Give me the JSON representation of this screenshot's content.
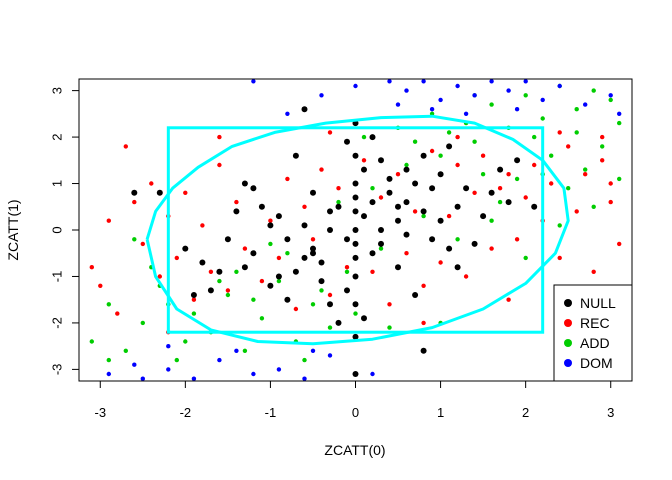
{
  "chart_data": {
    "type": "scatter",
    "title": "",
    "xlabel": "ZCATT(0)",
    "ylabel": "ZCATT(1)",
    "xlim": [
      -3.25,
      3.25
    ],
    "ylim": [
      -3.25,
      3.25
    ],
    "x_ticks": [
      -3,
      -2,
      -1,
      0,
      1,
      2,
      3
    ],
    "y_ticks": [
      -3,
      -2,
      -1,
      0,
      1,
      2,
      3
    ],
    "x_tick_labels": [
      "-3",
      "-2",
      "-1",
      "0",
      "1",
      "2",
      "3"
    ],
    "y_tick_labels": [
      "-3",
      "-2",
      "-1",
      "0",
      "1",
      "2",
      "3"
    ],
    "grid": false,
    "legend": {
      "position": "bottom-right",
      "entries": [
        {
          "label": "NULL",
          "color": "#000000"
        },
        {
          "label": "REC",
          "color": "#ff0000"
        },
        {
          "label": "ADD",
          "color": "#00cd00"
        },
        {
          "label": "DOM",
          "color": "#0000ff"
        }
      ]
    },
    "series": [
      {
        "name": "NULL",
        "color": "#000000",
        "points": [
          [
            0.0,
            0.0
          ],
          [
            0.1,
            0.3
          ],
          [
            -0.1,
            -0.2
          ],
          [
            0.2,
            0.6
          ],
          [
            -0.3,
            0.4
          ],
          [
            0.3,
            -0.3
          ],
          [
            0.5,
            0.2
          ],
          [
            -0.5,
            -0.4
          ],
          [
            0.0,
            1.0
          ],
          [
            0.0,
            -1.0
          ],
          [
            0.1,
            1.3
          ],
          [
            -0.1,
            -1.3
          ],
          [
            0.0,
            0.7
          ],
          [
            0.0,
            -0.6
          ],
          [
            0.0,
            1.6
          ],
          [
            0.0,
            -1.6
          ],
          [
            0.6,
            0.6
          ],
          [
            -0.6,
            -0.6
          ],
          [
            0.8,
            0.4
          ],
          [
            -0.8,
            -0.2
          ],
          [
            1.0,
            0.2
          ],
          [
            -1.0,
            0.1
          ],
          [
            1.2,
            0.5
          ],
          [
            -1.2,
            -0.5
          ],
          [
            0.4,
            1.1
          ],
          [
            -0.4,
            -1.1
          ],
          [
            0.7,
            1.0
          ],
          [
            -0.7,
            -0.9
          ],
          [
            0.9,
            -0.2
          ],
          [
            -0.9,
            0.3
          ],
          [
            1.1,
            -0.4
          ],
          [
            -1.1,
            0.5
          ],
          [
            0.3,
            1.5
          ],
          [
            -0.3,
            -1.6
          ],
          [
            0.5,
            -0.8
          ],
          [
            -0.5,
            0.8
          ],
          [
            1.3,
            0.9
          ],
          [
            -1.3,
            -0.8
          ],
          [
            1.5,
            0.3
          ],
          [
            -1.5,
            -0.2
          ],
          [
            0.2,
            2.0
          ],
          [
            -0.2,
            -2.0
          ],
          [
            1.6,
            0.8
          ],
          [
            -1.6,
            -0.9
          ],
          [
            0.8,
            1.6
          ],
          [
            -0.8,
            -1.5
          ],
          [
            1.4,
            -0.3
          ],
          [
            -1.4,
            0.4
          ],
          [
            0.6,
            -0.1
          ],
          [
            -0.6,
            0.1
          ],
          [
            0.2,
            -0.5
          ],
          [
            -0.2,
            0.5
          ],
          [
            1.8,
            0.6
          ],
          [
            -1.8,
            -0.7
          ],
          [
            0.4,
            0.8
          ],
          [
            -0.4,
            -0.7
          ],
          [
            1.0,
            1.2
          ],
          [
            -1.0,
            -1.2
          ],
          [
            0.1,
            -1.9
          ],
          [
            -0.1,
            1.9
          ],
          [
            2.1,
            0.5
          ],
          [
            -2.0,
            -0.4
          ],
          [
            0.9,
            0.9
          ],
          [
            -0.9,
            -1.0
          ],
          [
            1.7,
            1.3
          ],
          [
            -1.7,
            -1.3
          ],
          [
            0.3,
            0.0
          ],
          [
            -0.3,
            0.0
          ],
          [
            0.0,
            2.3
          ],
          [
            0.0,
            -2.3
          ],
          [
            1.2,
            -0.8
          ],
          [
            -1.2,
            0.9
          ],
          [
            -0.7,
            1.6
          ],
          [
            0.7,
            -1.4
          ],
          [
            1.9,
            1.5
          ],
          [
            -1.9,
            -1.4
          ],
          [
            0.5,
            0.5
          ],
          [
            -0.5,
            -0.5
          ],
          [
            0.0,
            0.4
          ],
          [
            0.0,
            -0.3
          ],
          [
            0.6,
            1.3
          ],
          [
            0.8,
            -2.6
          ],
          [
            0.0,
            -3.1
          ],
          [
            -0.6,
            2.6
          ],
          [
            -1.3,
            1.0
          ],
          [
            1.1,
            1.8
          ],
          [
            -2.3,
            0.8
          ],
          [
            -2.6,
            0.8
          ]
        ]
      },
      {
        "name": "REC",
        "color": "#ff0000",
        "points": [
          [
            -3.1,
            -0.8
          ],
          [
            -3.0,
            -1.2
          ],
          [
            -2.9,
            0.2
          ],
          [
            -2.8,
            -1.8
          ],
          [
            -2.6,
            0.6
          ],
          [
            -2.5,
            -0.3
          ],
          [
            -2.4,
            1.0
          ],
          [
            -2.3,
            -1.0
          ],
          [
            -2.2,
            0.3
          ],
          [
            -2.1,
            -0.6
          ],
          [
            -2.0,
            0.8
          ],
          [
            -1.9,
            -1.5
          ],
          [
            -1.8,
            0.1
          ],
          [
            -1.7,
            -0.9
          ],
          [
            -1.6,
            1.4
          ],
          [
            -1.5,
            -1.3
          ],
          [
            -1.4,
            0.6
          ],
          [
            -1.3,
            -0.4
          ],
          [
            -1.2,
            0.9
          ],
          [
            -1.1,
            -1.1
          ],
          [
            -1.0,
            0.2
          ],
          [
            -0.9,
            -0.6
          ],
          [
            -0.8,
            1.1
          ],
          [
            -0.7,
            -1.7
          ],
          [
            -0.6,
            0.5
          ],
          [
            -0.5,
            -0.2
          ],
          [
            -0.4,
            1.3
          ],
          [
            -0.3,
            -1.4
          ],
          [
            -0.2,
            0.9
          ],
          [
            -0.1,
            -0.8
          ],
          [
            0.1,
            1.5
          ],
          [
            0.2,
            -0.9
          ],
          [
            0.3,
            0.7
          ],
          [
            0.4,
            -1.6
          ],
          [
            0.5,
            1.2
          ],
          [
            0.6,
            -0.5
          ],
          [
            0.7,
            0.4
          ],
          [
            0.8,
            -1.2
          ],
          [
            0.9,
            1.7
          ],
          [
            1.0,
            -0.7
          ],
          [
            1.1,
            0.3
          ],
          [
            1.2,
            1.4
          ],
          [
            1.3,
            -1.0
          ],
          [
            1.4,
            0.8
          ],
          [
            1.5,
            1.6
          ],
          [
            1.6,
            -0.4
          ],
          [
            1.7,
            0.9
          ],
          [
            1.8,
            1.2
          ],
          [
            1.9,
            -0.2
          ],
          [
            2.0,
            0.7
          ],
          [
            2.1,
            1.4
          ],
          [
            2.2,
            0.2
          ],
          [
            2.3,
            1.0
          ],
          [
            2.4,
            -0.6
          ],
          [
            2.5,
            1.8
          ],
          [
            2.6,
            0.4
          ],
          [
            2.7,
            1.2
          ],
          [
            2.8,
            -0.9
          ],
          [
            2.9,
            1.5
          ],
          [
            3.0,
            0.6
          ],
          [
            3.1,
            -0.3
          ],
          [
            2.6,
            -1.3
          ],
          [
            2.4,
            2.1
          ],
          [
            2.9,
            2.0
          ],
          [
            -2.7,
            1.8
          ],
          [
            -2.2,
            -2.2
          ],
          [
            1.2,
            2.0
          ],
          [
            -0.3,
            2.1
          ],
          [
            0.8,
            -2.0
          ],
          [
            -1.6,
            2.0
          ],
          [
            1.8,
            -1.5
          ],
          [
            3.0,
            1.0
          ]
        ]
      },
      {
        "name": "ADD",
        "color": "#00cd00",
        "points": [
          [
            -3.1,
            -2.4
          ],
          [
            -2.9,
            -1.6
          ],
          [
            -2.7,
            -2.6
          ],
          [
            -2.5,
            -2.0
          ],
          [
            -2.3,
            -1.2
          ],
          [
            -2.1,
            -2.8
          ],
          [
            -1.9,
            -1.8
          ],
          [
            -1.7,
            -2.2
          ],
          [
            -1.5,
            -1.4
          ],
          [
            -1.3,
            -2.6
          ],
          [
            -1.1,
            -1.9
          ],
          [
            -0.9,
            -1.1
          ],
          [
            -0.7,
            -2.4
          ],
          [
            -0.5,
            -1.6
          ],
          [
            -0.3,
            -2.1
          ],
          [
            -0.1,
            -0.9
          ],
          [
            -1.8,
            -0.7
          ],
          [
            -1.4,
            -0.9
          ],
          [
            -1.0,
            -0.3
          ],
          [
            -0.6,
            0.1
          ],
          [
            -0.2,
            0.6
          ],
          [
            0.2,
            0.9
          ],
          [
            0.6,
            1.4
          ],
          [
            1.0,
            1.6
          ],
          [
            1.4,
            1.9
          ],
          [
            1.8,
            2.2
          ],
          [
            2.2,
            2.4
          ],
          [
            2.6,
            2.6
          ],
          [
            3.0,
            2.8
          ],
          [
            1.6,
            2.7
          ],
          [
            2.0,
            2.9
          ],
          [
            2.4,
            3.1
          ],
          [
            2.8,
            3.0
          ],
          [
            3.1,
            2.3
          ],
          [
            2.9,
            1.8
          ],
          [
            2.7,
            1.3
          ],
          [
            2.5,
            0.9
          ],
          [
            2.3,
            1.6
          ],
          [
            2.1,
            2.0
          ],
          [
            1.9,
            1.1
          ],
          [
            1.7,
            0.6
          ],
          [
            1.5,
            1.2
          ],
          [
            1.3,
            2.3
          ],
          [
            1.1,
            2.1
          ],
          [
            0.9,
            2.5
          ],
          [
            0.7,
            1.9
          ],
          [
            0.5,
            2.2
          ],
          [
            0.3,
            -0.4
          ],
          [
            -2.6,
            -0.2
          ],
          [
            -2.2,
            -1.6
          ],
          [
            -1.6,
            -1.1
          ],
          [
            -1.2,
            -1.5
          ],
          [
            -0.8,
            -0.5
          ],
          [
            -0.4,
            -1.3
          ],
          [
            0.0,
            -1.8
          ],
          [
            0.4,
            -2.1
          ],
          [
            0.8,
            0.3
          ],
          [
            1.2,
            -0.2
          ],
          [
            1.6,
            0.2
          ],
          [
            2.0,
            -0.6
          ],
          [
            2.4,
            0.1
          ],
          [
            2.8,
            0.5
          ],
          [
            3.1,
            1.1
          ],
          [
            -2.9,
            -2.8
          ],
          [
            -0.6,
            -2.8
          ],
          [
            1.0,
            -2.0
          ],
          [
            -2.4,
            -0.8
          ],
          [
            2.2,
            1.2
          ],
          [
            2.6,
            2.1
          ],
          [
            1.4,
            2.9
          ],
          [
            -2.0,
            -2.4
          ],
          [
            0.1,
            2.0
          ]
        ]
      },
      {
        "name": "DOM",
        "color": "#0000ff",
        "points": [
          [
            -2.9,
            -3.1
          ],
          [
            -2.6,
            -2.9
          ],
          [
            -2.2,
            -3.0
          ],
          [
            -1.9,
            -3.2
          ],
          [
            -1.6,
            -2.8
          ],
          [
            -1.2,
            -3.1
          ],
          [
            -0.9,
            -3.0
          ],
          [
            -0.6,
            -3.2
          ],
          [
            -0.3,
            -2.7
          ],
          [
            0.2,
            -3.1
          ],
          [
            0.4,
            3.2
          ],
          [
            0.6,
            3.0
          ],
          [
            0.8,
            3.2
          ],
          [
            1.0,
            2.8
          ],
          [
            1.2,
            3.1
          ],
          [
            1.4,
            2.9
          ],
          [
            1.6,
            3.2
          ],
          [
            1.8,
            3.0
          ],
          [
            2.0,
            3.2
          ],
          [
            2.2,
            2.8
          ],
          [
            2.4,
            3.1
          ],
          [
            2.7,
            2.7
          ],
          [
            3.0,
            2.9
          ],
          [
            0.0,
            3.1
          ],
          [
            -0.4,
            2.9
          ],
          [
            -0.8,
            2.5
          ],
          [
            -1.2,
            3.2
          ],
          [
            0.9,
            2.6
          ],
          [
            1.3,
            2.5
          ],
          [
            1.9,
            2.6
          ],
          [
            -2.2,
            -2.5
          ],
          [
            -1.4,
            -2.6
          ],
          [
            -0.5,
            -2.6
          ],
          [
            0.5,
            2.7
          ],
          [
            3.1,
            2.5
          ],
          [
            -2.5,
            -3.2
          ]
        ]
      }
    ],
    "annotations": {
      "rectangle": {
        "x0": -2.2,
        "x1": 2.2,
        "y0": -2.2,
        "y1": 2.2,
        "color": "#00ffff"
      },
      "contour_color": "#00ffff",
      "contour": [
        [
          -2.45,
          -0.2
        ],
        [
          -2.35,
          0.4
        ],
        [
          -2.15,
          0.9
        ],
        [
          -1.85,
          1.35
        ],
        [
          -1.45,
          1.8
        ],
        [
          -0.95,
          2.1
        ],
        [
          -0.35,
          2.3
        ],
        [
          0.3,
          2.42
        ],
        [
          0.9,
          2.45
        ],
        [
          1.4,
          2.3
        ],
        [
          1.85,
          1.95
        ],
        [
          2.2,
          1.5
        ],
        [
          2.45,
          0.9
        ],
        [
          2.5,
          0.2
        ],
        [
          2.35,
          -0.5
        ],
        [
          2.0,
          -1.15
        ],
        [
          1.5,
          -1.7
        ],
        [
          0.9,
          -2.1
        ],
        [
          0.2,
          -2.35
        ],
        [
          -0.5,
          -2.45
        ],
        [
          -1.15,
          -2.4
        ],
        [
          -1.7,
          -2.15
        ],
        [
          -2.1,
          -1.7
        ],
        [
          -2.35,
          -1.0
        ],
        [
          -2.45,
          -0.2
        ]
      ]
    }
  }
}
